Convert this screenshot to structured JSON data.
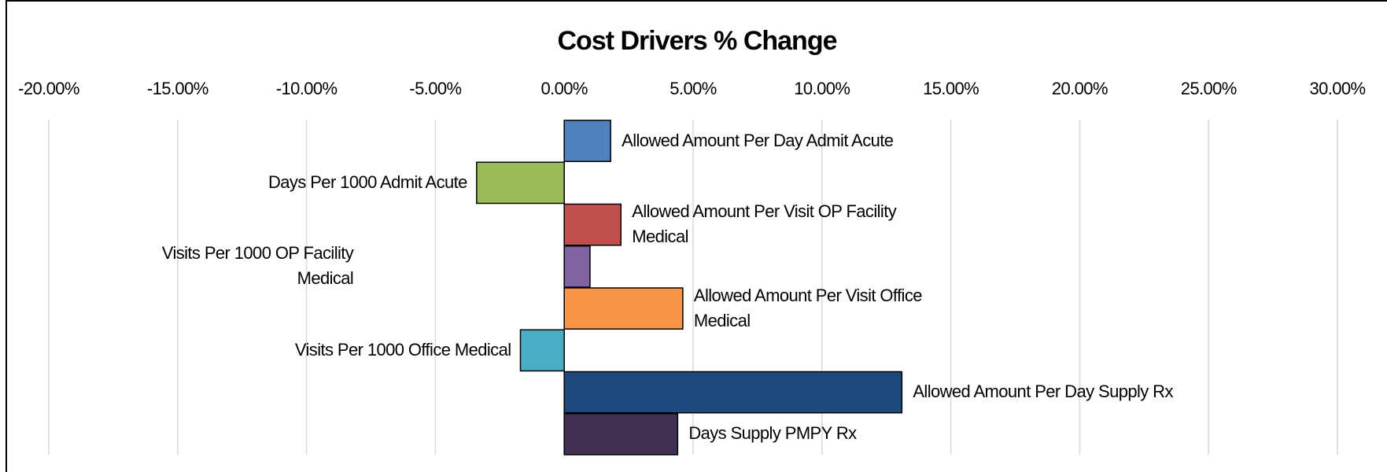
{
  "chart_data": {
    "type": "hbar",
    "title": "Cost Drivers % Change",
    "categories": [
      "Allowed Amount Per Day Admit Acute",
      "Days Per 1000 Admit Acute",
      "Allowed Amount Per Visit OP Facility Medical",
      "Visits Per 1000 OP Facility Medical",
      "Allowed Amount Per Visit Office Medical",
      "Visits Per 1000 Office Medical",
      "Allowed Amount Per Day Supply Rx",
      "Days Supply PMPY Rx"
    ],
    "values": [
      1.8,
      -3.4,
      2.2,
      1.0,
      4.6,
      -1.7,
      13.1,
      4.4
    ],
    "colors": [
      "#4f81bd",
      "#9bbb59",
      "#c0504d",
      "#8064a2",
      "#f79646",
      "#4bacc6",
      "#1f497d",
      "#403152"
    ],
    "xlim": [
      -20,
      30
    ],
    "xticks": [
      {
        "value": -20,
        "label": "-20.00%"
      },
      {
        "value": -15,
        "label": "-15.00%"
      },
      {
        "value": -10,
        "label": "-10.00%"
      },
      {
        "value": -5,
        "label": "-5.00%"
      },
      {
        "value": 0,
        "label": "0.00%"
      },
      {
        "value": 5,
        "label": "5.00%"
      },
      {
        "value": 10,
        "label": "10.00%"
      },
      {
        "value": 15,
        "label": "15.00%"
      },
      {
        "value": 20,
        "label": "20.00%"
      },
      {
        "value": 25,
        "label": "25.00%"
      },
      {
        "value": 30,
        "label": "30.00%"
      }
    ],
    "grid": true
  }
}
